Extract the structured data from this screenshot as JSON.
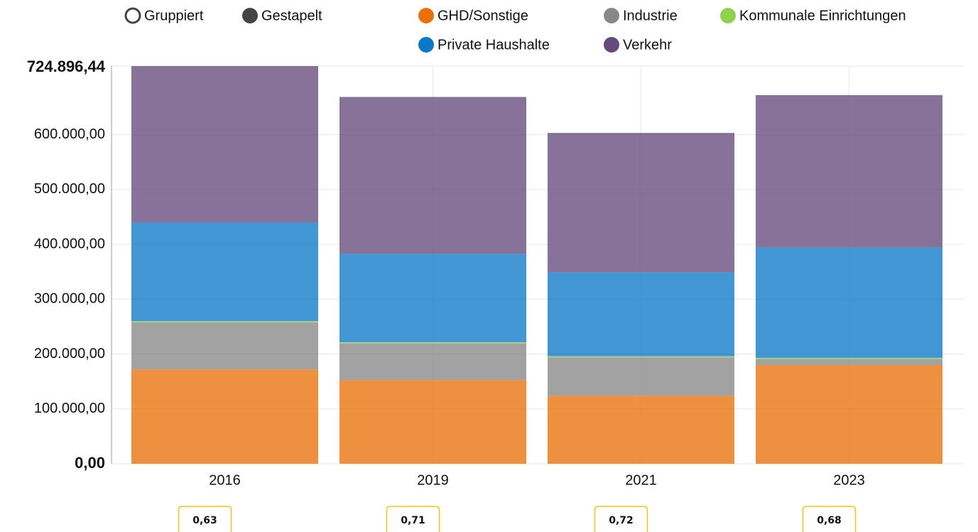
{
  "controls": {
    "options": [
      "Gruppiert",
      "Gestapelt"
    ]
  },
  "chart_data": {
    "type": "stacked_bar",
    "categories": [
      "2016",
      "2019",
      "2021",
      "2023"
    ],
    "series": [
      {
        "name": "GHD/Sonstige",
        "color": "#e8710a",
        "values": [
          172000,
          152600,
          124000,
          180000
        ]
      },
      {
        "name": "Industrie",
        "color": "#888888",
        "values": [
          86000,
          67000,
          70000,
          11000
        ]
      },
      {
        "name": "Kommunale Einrichtungen",
        "color": "#8fd14f",
        "values": [
          2000,
          2000,
          2000,
          2000
        ]
      },
      {
        "name": "Private Haushalte",
        "color": "#0b78c8",
        "values": [
          180000,
          161000,
          153000,
          201000
        ]
      },
      {
        "name": "Verkehr",
        "color": "#654a7e",
        "values": [
          284896,
          286000,
          254000,
          278000
        ]
      }
    ],
    "ylim": [
      0,
      724896.44
    ],
    "yticks": [
      {
        "value": 0,
        "label": "0,00"
      },
      {
        "value": 100000,
        "label": "100.000,00"
      },
      {
        "value": 200000,
        "label": "200.000,00"
      },
      {
        "value": 300000,
        "label": "300.000,00"
      },
      {
        "value": 400000,
        "label": "400.000,00"
      },
      {
        "value": 500000,
        "label": "500.000,00"
      },
      {
        "value": 600000,
        "label": "600.000,00"
      },
      {
        "value": 724896.44,
        "label": "724.896,44"
      }
    ],
    "grid": true,
    "badges": [
      "0,63",
      "0,71",
      "0,72",
      "0,68"
    ]
  }
}
